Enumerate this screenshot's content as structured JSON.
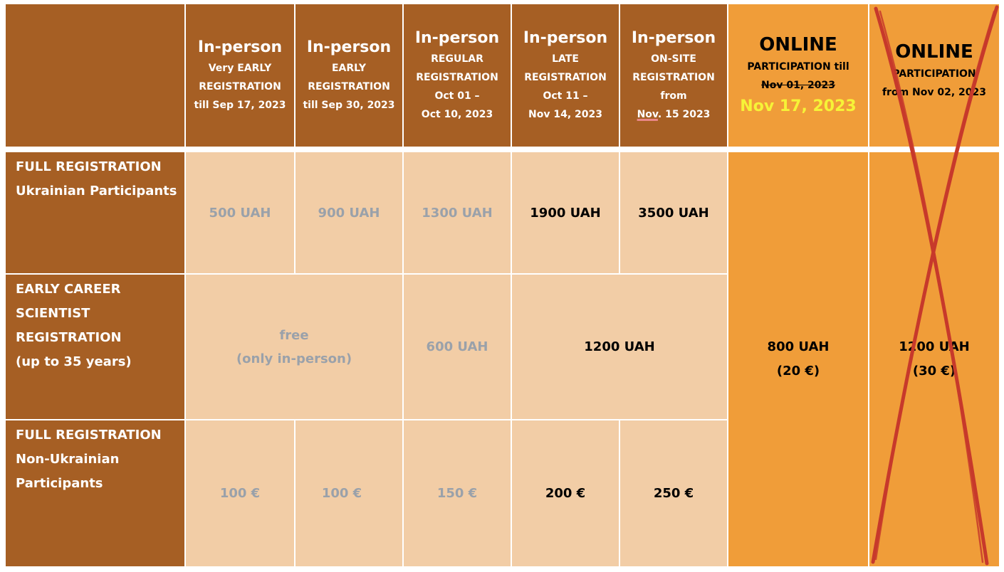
{
  "colors": {
    "brown": "#a65f24",
    "tan": "#f2cda6",
    "orange": "#f09d39",
    "cross": "#c7392b",
    "highlight": "#f6f337"
  },
  "header": {
    "col1": {
      "title": "In-person",
      "lines": [
        "Very EARLY",
        "REGISTRATION",
        "till Sep 17, 2023"
      ]
    },
    "col2": {
      "title": "In-person",
      "lines": [
        "EARLY",
        "REGISTRATION",
        "till Sep 30, 2023"
      ]
    },
    "col3": {
      "title": "In-person",
      "lines": [
        "REGULAR",
        "REGISTRATION",
        "Oct 01 –",
        "Oct 10, 2023"
      ]
    },
    "col4": {
      "title": "In-person",
      "lines": [
        "LATE",
        "REGISTRATION",
        "Oct 11 –",
        "Nov 14, 2023"
      ]
    },
    "col5": {
      "title": "In-person",
      "lines": [
        "ON-SITE",
        "REGISTRATION",
        "from"
      ],
      "date_underlined": "Nov",
      "date_rest": ". 15 2023"
    },
    "online1": {
      "title": "ONLINE",
      "line1": "PARTICIPATION till",
      "struck": "Nov 01, 2023",
      "new_date": "Nov 17, 2023"
    },
    "online2": {
      "title": "ONLINE",
      "line1": "PARTICIPATION",
      "line2": "from Nov 02, 2023"
    }
  },
  "rows": {
    "full_ua": {
      "label_lines": [
        "FULL REGISTRATION",
        "Ukrainian Participants"
      ],
      "prices": [
        "500 UAH",
        "900 UAH",
        "1300 UAH",
        "1900 UAH",
        "3500 UAH"
      ]
    },
    "early_career": {
      "label_lines": [
        "EARLY CAREER",
        "SCIENTIST",
        "REGISTRATION",
        "(up to 35 years)"
      ],
      "free_line1": "free",
      "free_line2": "(only in-person)",
      "regular": "600 UAH",
      "late": "1200 UAH"
    },
    "full_non_ua": {
      "label_lines": [
        "FULL REGISTRATION",
        "Non-Ukrainian",
        "Participants"
      ],
      "prices": [
        "100 €",
        "100 €",
        "150 €",
        "200 €",
        "250 €"
      ]
    }
  },
  "online_prices": {
    "col1": {
      "line1": "800 UAH",
      "line2": "(20 €)"
    },
    "col2": {
      "line1": "1200 UAH",
      "line2": "(30 €)"
    }
  }
}
